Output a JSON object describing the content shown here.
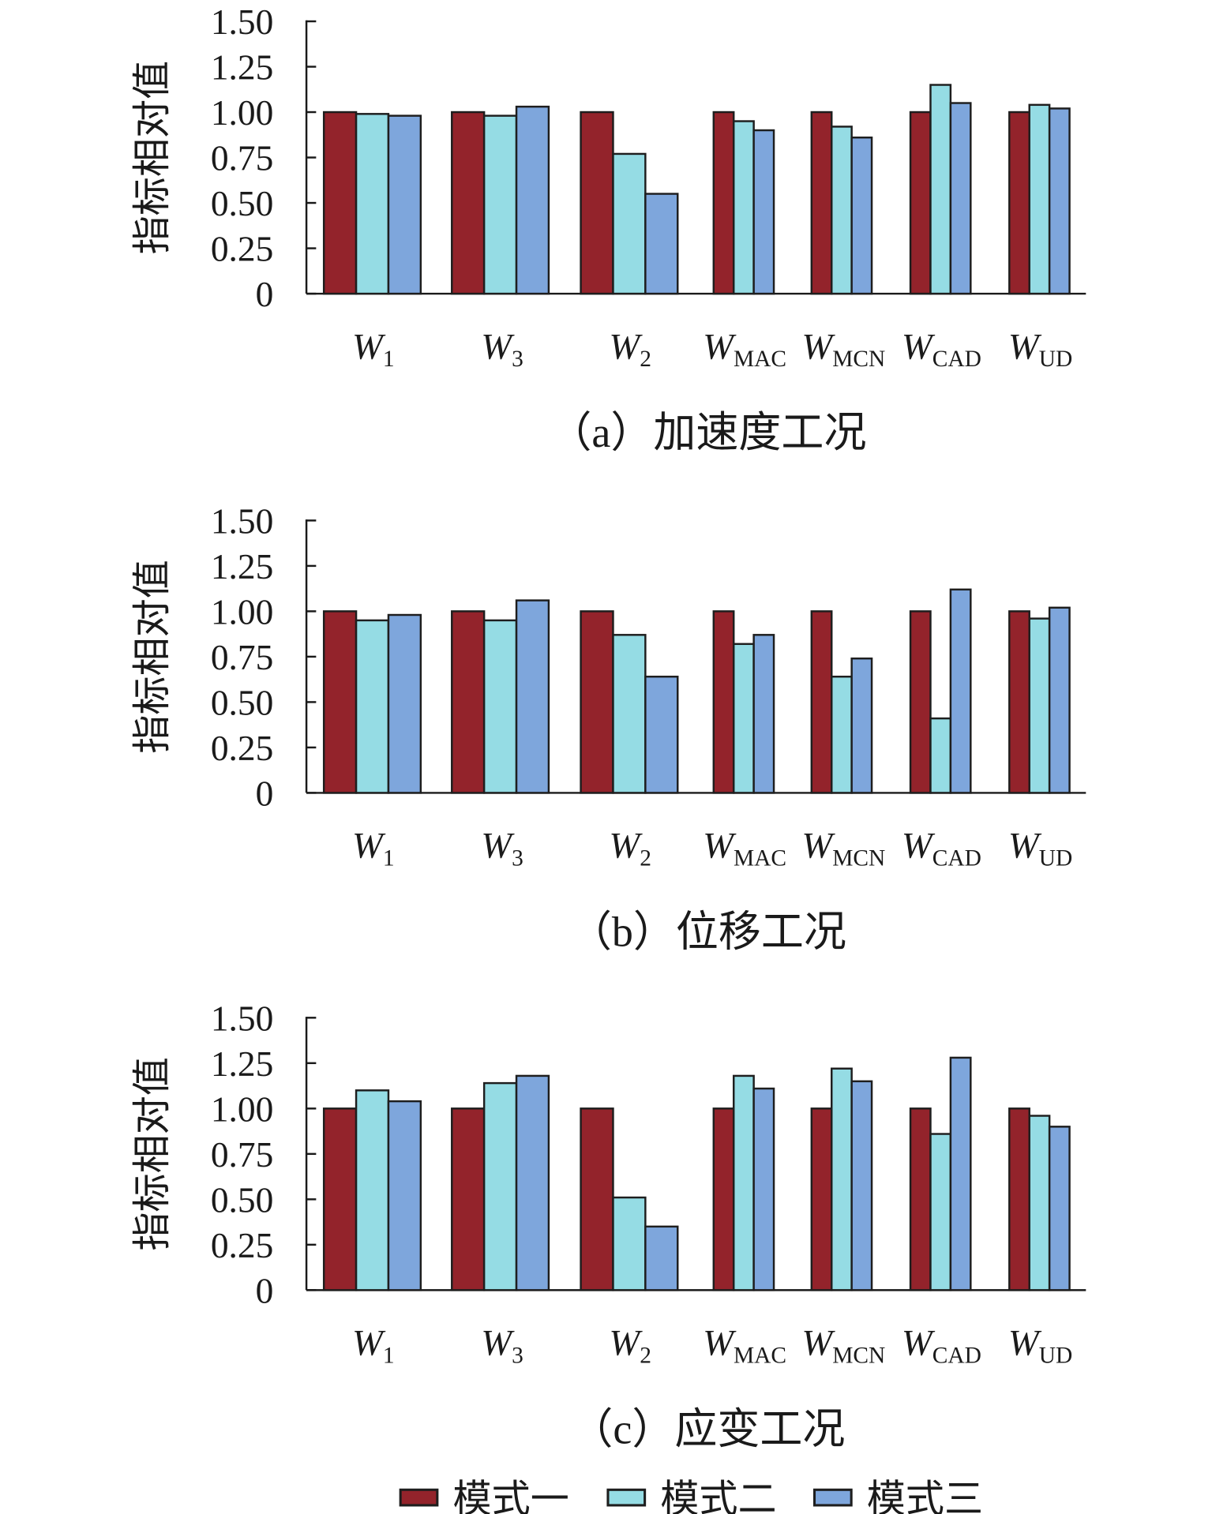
{
  "colors": [
    "#93232B",
    "#95DCE4",
    "#7EA6DC"
  ],
  "legend": [
    "模式一",
    "模式二",
    "模式三"
  ],
  "chart_data": [
    {
      "type": "bar",
      "title": "（a）加速度工况",
      "ylabel": "指标相对值",
      "xlabel": "",
      "ylim": [
        0,
        1.5
      ],
      "yticks": [
        "0",
        "0.25",
        "0.50",
        "0.75",
        "1.00",
        "1.25",
        "1.50"
      ],
      "categories": [
        {
          "main": "W",
          "sub": "1"
        },
        {
          "main": "W",
          "sub": "3"
        },
        {
          "main": "W",
          "sub": "2"
        },
        {
          "main": "W",
          "sub": "MAC"
        },
        {
          "main": "W",
          "sub": "MCN"
        },
        {
          "main": "W",
          "sub": "CAD"
        },
        {
          "main": "W",
          "sub": "UD"
        }
      ],
      "series": [
        {
          "name": "模式一",
          "values": [
            1.0,
            1.0,
            1.0,
            1.0,
            1.0,
            1.0,
            1.0
          ]
        },
        {
          "name": "模式二",
          "values": [
            0.99,
            0.98,
            0.77,
            0.95,
            0.92,
            1.15,
            1.04
          ]
        },
        {
          "name": "模式三",
          "values": [
            0.98,
            1.03,
            0.55,
            0.9,
            0.86,
            1.05,
            1.02
          ]
        }
      ],
      "grid": false
    },
    {
      "type": "bar",
      "title": "（b）位移工况",
      "ylabel": "指标相对值",
      "xlabel": "",
      "ylim": [
        0,
        1.5
      ],
      "yticks": [
        "0",
        "0.25",
        "0.50",
        "0.75",
        "1.00",
        "1.25",
        "1.50"
      ],
      "categories": [
        {
          "main": "W",
          "sub": "1"
        },
        {
          "main": "W",
          "sub": "3"
        },
        {
          "main": "W",
          "sub": "2"
        },
        {
          "main": "W",
          "sub": "MAC"
        },
        {
          "main": "W",
          "sub": "MCN"
        },
        {
          "main": "W",
          "sub": "CAD"
        },
        {
          "main": "W",
          "sub": "UD"
        }
      ],
      "series": [
        {
          "name": "模式一",
          "values": [
            1.0,
            1.0,
            1.0,
            1.0,
            1.0,
            1.0,
            1.0
          ]
        },
        {
          "name": "模式二",
          "values": [
            0.95,
            0.95,
            0.87,
            0.82,
            0.64,
            0.41,
            0.96
          ]
        },
        {
          "name": "模式三",
          "values": [
            0.98,
            1.06,
            0.64,
            0.87,
            0.74,
            1.12,
            1.02
          ]
        }
      ],
      "grid": false
    },
    {
      "type": "bar",
      "title": "（c）应变工况",
      "ylabel": "指标相对值",
      "xlabel": "",
      "ylim": [
        0,
        1.5
      ],
      "yticks": [
        "0",
        "0.25",
        "0.50",
        "0.75",
        "1.00",
        "1.25",
        "1.50"
      ],
      "categories": [
        {
          "main": "W",
          "sub": "1"
        },
        {
          "main": "W",
          "sub": "3"
        },
        {
          "main": "W",
          "sub": "2"
        },
        {
          "main": "W",
          "sub": "MAC"
        },
        {
          "main": "W",
          "sub": "MCN"
        },
        {
          "main": "W",
          "sub": "CAD"
        },
        {
          "main": "W",
          "sub": "UD"
        }
      ],
      "series": [
        {
          "name": "模式一",
          "values": [
            1.0,
            1.0,
            1.0,
            1.0,
            1.0,
            1.0,
            1.0
          ]
        },
        {
          "name": "模式二",
          "values": [
            1.1,
            1.14,
            0.51,
            1.18,
            1.22,
            0.86,
            0.96
          ]
        },
        {
          "name": "模式三",
          "values": [
            1.04,
            1.18,
            0.35,
            1.11,
            1.15,
            1.28,
            0.9
          ]
        }
      ],
      "grid": false
    }
  ]
}
